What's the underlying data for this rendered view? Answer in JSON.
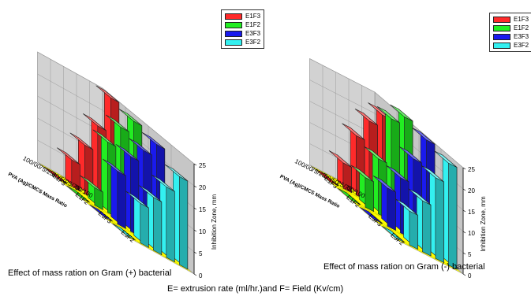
{
  "chart_data": [
    {
      "type": "bar3d",
      "ylabel": "PVA (Ag)/CMCS Mass Ratio",
      "zlabel": "Inhibition Zone, mm",
      "zlim": [
        0,
        25
      ],
      "zticks": [
        "0",
        "5",
        "10",
        "15",
        "20",
        "25"
      ],
      "categories": [
        "00/100",
        "25/75",
        "50/50",
        "75/25",
        "100/00"
      ],
      "depth_labels": [
        "E1F3",
        "E1F2",
        "E3F3",
        "E3F2"
      ],
      "legend_placement": "top-right",
      "series": [
        {
          "name": "E1F3",
          "color": "#ff2a2a",
          "values": [
            25,
            17,
            11,
            6,
            0
          ]
        },
        {
          "name": "E1F2",
          "color": "#22ee22",
          "values": [
            24,
            21,
            16,
            4,
            0
          ]
        },
        {
          "name": "E3F3",
          "color": "#1a1aee",
          "values": [
            23,
            20,
            17,
            12,
            0
          ]
        },
        {
          "name": "E3F2",
          "color": "#33f0f0",
          "values": [
            20,
            16,
            12,
            9,
            0
          ]
        }
      ],
      "caption": "Effect of mass ration on Gram (+) bacterial"
    },
    {
      "type": "bar3d",
      "ylabel": "PVA (Ag)/CMCS Mass Ratio",
      "zlabel": "Inhibition Zone, mm",
      "zlim": [
        0,
        25
      ],
      "zticks": [
        "0",
        "5",
        "10",
        "15",
        "20",
        "25"
      ],
      "categories": [
        "00/100",
        "25/75",
        "50/50",
        "75/25",
        "100/00"
      ],
      "depth_labels": [
        "E1F3",
        "E1F2",
        "E3F3",
        "E3F2"
      ],
      "legend_placement": "top-right",
      "series": [
        {
          "name": "E1F3",
          "color": "#ff2a2a",
          "values": [
            22,
            19,
            14,
            6,
            0
          ]
        },
        {
          "name": "E1F2",
          "color": "#22ee22",
          "values": [
            26,
            24,
            13,
            7,
            0
          ]
        },
        {
          "name": "E3F3",
          "color": "#1a1aee",
          "values": [
            25,
            19,
            13,
            9,
            0
          ]
        },
        {
          "name": "E3F2",
          "color": "#33f0f0",
          "values": [
            24,
            19,
            12,
            8,
            0
          ]
        }
      ],
      "caption": "Effect of mass ration on Gram (-) bacterial"
    }
  ],
  "footnote": "E= extrusion rate (ml/hr.)and F= Field (Kv/cm)"
}
